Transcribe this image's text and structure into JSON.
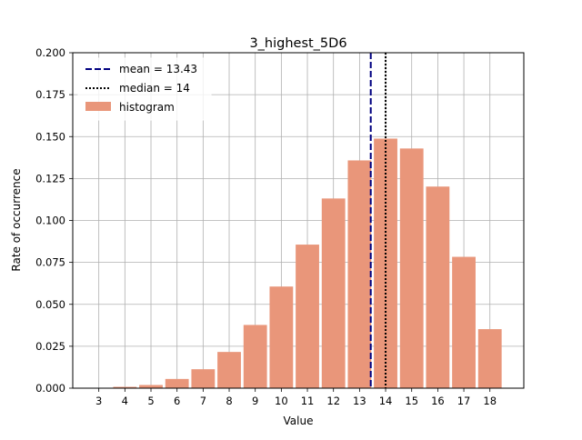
{
  "chart_data": {
    "type": "bar",
    "title": "3_highest_5D6",
    "xlabel": "Value",
    "ylabel": "Rate of occurrence",
    "categories": [
      3,
      4,
      5,
      6,
      7,
      8,
      9,
      10,
      11,
      12,
      13,
      14,
      15,
      16,
      17,
      18
    ],
    "values": [
      0.0001,
      0.0008,
      0.0019,
      0.0055,
      0.0113,
      0.0216,
      0.0377,
      0.0606,
      0.0856,
      0.1131,
      0.1358,
      0.1488,
      0.1429,
      0.1202,
      0.0783,
      0.0352
    ],
    "ylim": [
      0,
      0.2
    ],
    "xlim": [
      2.0,
      19.3
    ],
    "yticks": [
      0.0,
      0.025,
      0.05,
      0.075,
      0.1,
      0.125,
      0.15,
      0.175,
      0.2
    ],
    "ytick_labels": [
      "0.000",
      "0.025",
      "0.050",
      "0.075",
      "0.100",
      "0.125",
      "0.150",
      "0.175",
      "0.200"
    ],
    "grid": true,
    "legend_position": "top-left",
    "mean": 13.43,
    "median": 14,
    "legend": {
      "mean_label": "mean = 13.43",
      "median_label": "median = 14",
      "hist_label": "histogram"
    },
    "colors": {
      "bar": "#e9967a",
      "mean": "#000080",
      "median": "#000000",
      "grid": "#b0b0b0"
    }
  }
}
